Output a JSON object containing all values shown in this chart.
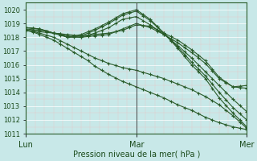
{
  "title": "Pression niveau de la mer( hPa )",
  "bg_color": "#c8e8e8",
  "line_color": "#2a5c2a",
  "ylim": [
    1011,
    1020.5
  ],
  "yticks": [
    1011,
    1012,
    1013,
    1014,
    1015,
    1016,
    1017,
    1018,
    1019,
    1020
  ],
  "series_data": {
    "line1": {
      "x": [
        0,
        3,
        6,
        9,
        12,
        15,
        18,
        21,
        24,
        27,
        30,
        33,
        36,
        39,
        42,
        45,
        48,
        51,
        54,
        57,
        60,
        63,
        66,
        69,
        72,
        75,
        78,
        81,
        84,
        87,
        90,
        93,
        96
      ],
      "y": [
        1018.6,
        1018.55,
        1018.5,
        1018.45,
        1018.3,
        1018.2,
        1018.1,
        1018.05,
        1018.0,
        1018.05,
        1018.1,
        1018.15,
        1018.2,
        1018.4,
        1018.6,
        1018.8,
        1019.0,
        1018.85,
        1018.7,
        1018.45,
        1018.2,
        1017.9,
        1017.6,
        1017.25,
        1016.9,
        1016.5,
        1016.1,
        1015.55,
        1015.0,
        1014.7,
        1014.4,
        1014.45,
        1014.5
      ]
    },
    "line2": {
      "x": [
        0,
        3,
        6,
        9,
        12,
        15,
        18,
        21,
        24,
        27,
        30,
        33,
        36,
        39,
        42,
        45,
        48,
        51,
        54,
        57,
        60,
        63,
        66,
        69,
        72,
        75,
        78,
        81,
        84,
        87,
        90,
        93,
        96
      ],
      "y": [
        1018.5,
        1018.48,
        1018.4,
        1018.35,
        1018.3,
        1018.25,
        1018.2,
        1018.15,
        1018.1,
        1018.15,
        1018.2,
        1018.25,
        1018.3,
        1018.4,
        1018.5,
        1018.7,
        1018.9,
        1018.85,
        1018.8,
        1018.55,
        1018.3,
        1018.05,
        1017.8,
        1017.45,
        1017.1,
        1016.7,
        1016.3,
        1015.7,
        1015.1,
        1014.75,
        1014.4,
        1014.35,
        1014.3
      ]
    },
    "line3": {
      "x": [
        0,
        3,
        6,
        9,
        12,
        15,
        18,
        21,
        24,
        27,
        30,
        33,
        36,
        39,
        42,
        45,
        48,
        51,
        54,
        57,
        60,
        63,
        66,
        69,
        72,
        75,
        78,
        81,
        84,
        87,
        90,
        93,
        96
      ],
      "y": [
        1018.7,
        1018.65,
        1018.6,
        1018.45,
        1018.3,
        1018.15,
        1018.0,
        1018.0,
        1018.0,
        1018.15,
        1018.3,
        1018.5,
        1018.7,
        1019.0,
        1019.3,
        1019.4,
        1019.5,
        1019.2,
        1018.9,
        1018.55,
        1018.2,
        1017.8,
        1017.4,
        1016.95,
        1016.5,
        1016.0,
        1015.5,
        1015.0,
        1014.5,
        1014.0,
        1013.5,
        1013.05,
        1012.6
      ]
    },
    "line4": {
      "x": [
        0,
        3,
        6,
        9,
        12,
        15,
        18,
        21,
        24,
        27,
        30,
        33,
        36,
        39,
        42,
        45,
        48,
        51,
        54,
        57,
        60,
        63,
        66,
        69,
        72,
        75,
        78,
        81,
        84,
        87,
        90,
        93,
        96
      ],
      "y": [
        1018.7,
        1018.65,
        1018.6,
        1018.45,
        1018.3,
        1018.2,
        1018.0,
        1018.05,
        1018.1,
        1018.3,
        1018.5,
        1018.75,
        1019.0,
        1019.3,
        1019.6,
        1019.75,
        1019.9,
        1019.55,
        1019.2,
        1018.75,
        1018.3,
        1017.8,
        1017.3,
        1016.75,
        1016.2,
        1015.7,
        1015.2,
        1014.6,
        1014.0,
        1013.45,
        1012.9,
        1012.45,
        1012.0
      ]
    },
    "line5": {
      "x": [
        0,
        3,
        6,
        9,
        12,
        15,
        18,
        21,
        24,
        27,
        30,
        33,
        36,
        39,
        42,
        45,
        48,
        51,
        54,
        57,
        60,
        63,
        66,
        69,
        72,
        75,
        78,
        81,
        84,
        87,
        90,
        93,
        96
      ],
      "y": [
        1018.7,
        1018.65,
        1018.6,
        1018.45,
        1018.3,
        1018.25,
        1018.0,
        1018.1,
        1018.2,
        1018.4,
        1018.6,
        1018.85,
        1019.1,
        1019.4,
        1019.7,
        1019.85,
        1020.0,
        1019.65,
        1019.3,
        1018.8,
        1018.3,
        1017.75,
        1017.2,
        1016.6,
        1016.0,
        1015.5,
        1015.0,
        1014.3,
        1013.6,
        1013.05,
        1012.5,
        1012.0,
        1011.5
      ]
    },
    "line6": {
      "x": [
        0,
        3,
        6,
        9,
        12,
        15,
        18,
        21,
        24,
        27,
        30,
        33,
        36,
        39,
        42,
        45,
        48,
        51,
        54,
        57,
        60,
        63,
        66,
        69,
        72,
        75,
        78,
        81,
        84,
        87,
        90,
        93,
        96
      ],
      "y": [
        1018.5,
        1018.42,
        1018.3,
        1018.15,
        1018.0,
        1017.75,
        1017.5,
        1017.25,
        1017.0,
        1016.75,
        1016.5,
        1016.3,
        1016.1,
        1015.95,
        1015.8,
        1015.7,
        1015.6,
        1015.45,
        1015.3,
        1015.15,
        1015.0,
        1014.8,
        1014.6,
        1014.4,
        1014.2,
        1013.95,
        1013.7,
        1013.4,
        1013.1,
        1012.7,
        1012.3,
        1011.85,
        1011.4
      ]
    },
    "line7": {
      "x": [
        0,
        3,
        6,
        9,
        12,
        15,
        18,
        21,
        24,
        27,
        30,
        33,
        36,
        39,
        42,
        45,
        48,
        51,
        54,
        57,
        60,
        63,
        66,
        69,
        72,
        75,
        78,
        81,
        84,
        87,
        90,
        93,
        96
      ],
      "y": [
        1018.5,
        1018.38,
        1018.2,
        1018.0,
        1017.8,
        1017.5,
        1017.2,
        1016.9,
        1016.6,
        1016.3,
        1015.9,
        1015.6,
        1015.3,
        1015.05,
        1014.8,
        1014.6,
        1014.4,
        1014.2,
        1014.0,
        1013.8,
        1013.6,
        1013.35,
        1013.1,
        1012.9,
        1012.7,
        1012.45,
        1012.2,
        1012.0,
        1011.8,
        1011.65,
        1011.5,
        1011.4,
        1011.3
      ]
    }
  }
}
